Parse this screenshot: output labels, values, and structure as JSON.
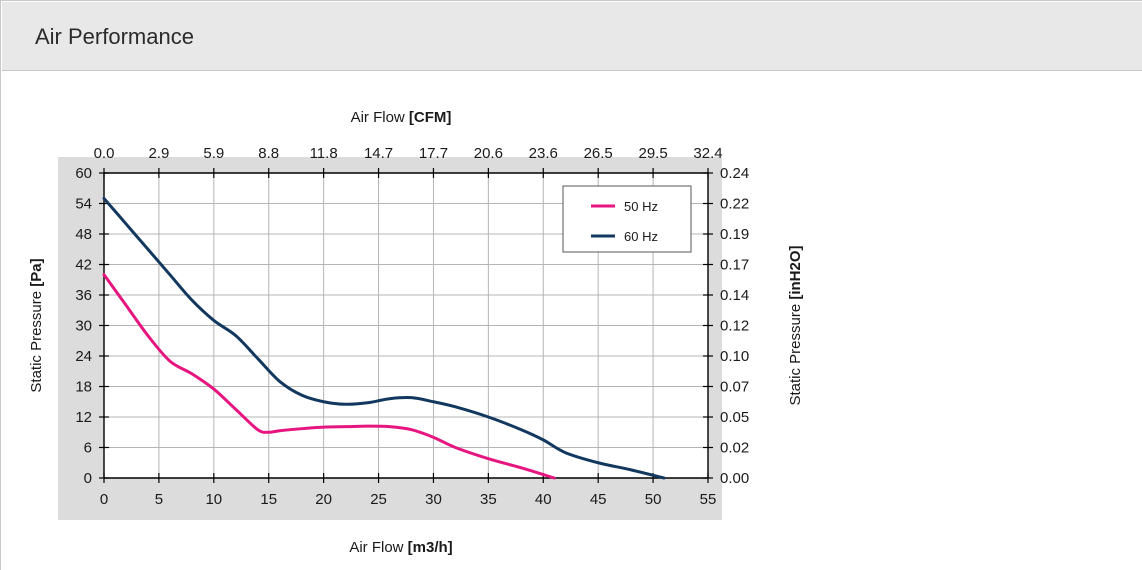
{
  "header": {
    "title": "Air Performance"
  },
  "chart_data": {
    "type": "line",
    "title": "",
    "xlabel": {
      "normal": "Air Flow ",
      "bold": "[m3/h]"
    },
    "x2label": {
      "normal": "Air Flow ",
      "bold": "[CFM]"
    },
    "ylabel": {
      "normal": "Static Pressure ",
      "bold": "[Pa]"
    },
    "y2label": {
      "normal": "Static Pressure ",
      "bold": "[inH2O]"
    },
    "xlim": [
      0,
      55
    ],
    "ylim": [
      0,
      60
    ],
    "x_ticks": [
      "0",
      "5",
      "10",
      "15",
      "20",
      "25",
      "30",
      "35",
      "40",
      "45",
      "50",
      "55"
    ],
    "y_ticks": [
      "0",
      "6",
      "12",
      "18",
      "24",
      "30",
      "36",
      "42",
      "48",
      "54",
      "60"
    ],
    "x2_ticks": [
      "0.0",
      "2.9",
      "5.9",
      "8.8",
      "11.8",
      "14.7",
      "17.7",
      "20.6",
      "23.6",
      "26.5",
      "29.5",
      "32.4"
    ],
    "y2_ticks": [
      "0.00",
      "0.02",
      "0.05",
      "0.07",
      "0.10",
      "0.12",
      "0.14",
      "0.17",
      "0.19",
      "0.22",
      "0.24"
    ],
    "grid": true,
    "legend_position": "top-right",
    "series": [
      {
        "name": "50 Hz",
        "color": "#e6157f",
        "x": [
          0,
          2,
          4,
          6,
          8,
          10,
          12,
          14,
          15,
          16,
          18,
          20,
          22,
          24,
          26,
          28,
          30,
          32,
          35,
          38,
          41
        ],
        "y": [
          40,
          34,
          28,
          23,
          20.5,
          17.5,
          13.5,
          9.5,
          9,
          9.3,
          9.7,
          10,
          10.1,
          10.2,
          10.1,
          9.5,
          8,
          6,
          3.8,
          2,
          0
        ]
      },
      {
        "name": "60 Hz",
        "color": "#12385f",
        "x": [
          0,
          2,
          4,
          6,
          8,
          10,
          12,
          14,
          16,
          18,
          20,
          22,
          24,
          26,
          28,
          30,
          32,
          35,
          38,
          40,
          42,
          45,
          48,
          51
        ],
        "y": [
          55,
          50,
          45,
          40,
          35,
          31,
          28,
          23.5,
          19,
          16.3,
          15,
          14.5,
          14.8,
          15.6,
          15.8,
          15,
          14,
          12,
          9.5,
          7.5,
          5,
          3,
          1.6,
          0
        ]
      }
    ]
  }
}
